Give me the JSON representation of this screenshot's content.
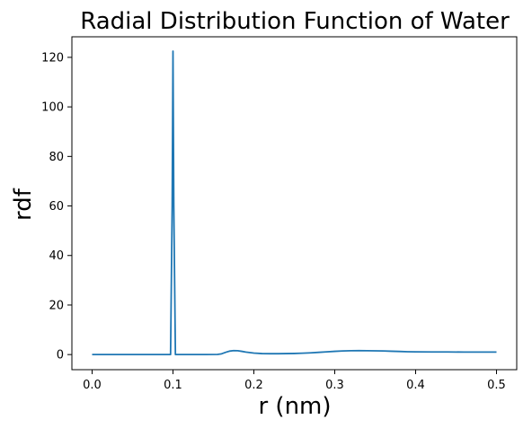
{
  "chart_data": {
    "type": "line",
    "title": "Radial Distribution Function of Water",
    "xlabel": "r (nm)",
    "ylabel": "rdf",
    "xlim": [
      -0.025,
      0.525
    ],
    "ylim": [
      -6.1,
      128.3
    ],
    "xticks": [
      0.0,
      0.1,
      0.2,
      0.3,
      0.4,
      0.5
    ],
    "xtick_labels": [
      "0.0",
      "0.1",
      "0.2",
      "0.3",
      "0.4",
      "0.5"
    ],
    "yticks": [
      0,
      20,
      40,
      60,
      80,
      100,
      120
    ],
    "ytick_labels": [
      "0",
      "20",
      "40",
      "60",
      "80",
      "100",
      "120"
    ],
    "grid": false,
    "line_color": "#1f77b4",
    "series": [
      {
        "x": [
          0.0,
          0.02,
          0.04,
          0.06,
          0.08,
          0.097,
          0.099,
          0.1,
          0.101,
          0.103,
          0.12,
          0.14,
          0.155,
          0.16,
          0.165,
          0.17,
          0.175,
          0.18,
          0.185,
          0.19,
          0.2,
          0.21,
          0.22,
          0.23,
          0.24,
          0.25,
          0.26,
          0.27,
          0.28,
          0.29,
          0.3,
          0.31,
          0.32,
          0.33,
          0.34,
          0.35,
          0.36,
          0.37,
          0.38,
          0.39,
          0.4,
          0.42,
          0.44,
          0.46,
          0.48,
          0.5
        ],
        "y": [
          0.0,
          0.0,
          0.0,
          0.0,
          0.0,
          0.0,
          60.0,
          122.5,
          60.0,
          0.0,
          0.0,
          0.0,
          0.05,
          0.3,
          0.9,
          1.4,
          1.6,
          1.55,
          1.3,
          1.0,
          0.6,
          0.4,
          0.35,
          0.35,
          0.4,
          0.45,
          0.55,
          0.7,
          0.9,
          1.1,
          1.3,
          1.45,
          1.55,
          1.6,
          1.55,
          1.5,
          1.45,
          1.35,
          1.25,
          1.15,
          1.1,
          1.05,
          1.05,
          1.0,
          1.0,
          1.0
        ]
      }
    ]
  }
}
